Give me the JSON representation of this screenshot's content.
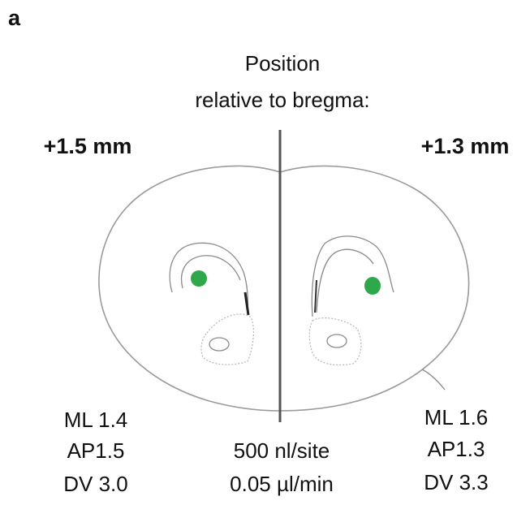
{
  "panel_label": "a",
  "header": [
    "Position",
    "relative to bregma:"
  ],
  "left": {
    "section": "+1.5 mm",
    "coordinates": [
      "ML 1.4",
      "AP1.5",
      "DV 3.0"
    ]
  },
  "right": {
    "section": "+1.3 mm",
    "coordinates": [
      "ML 1.6",
      "AP1.3",
      "DV 3.3"
    ]
  },
  "injection": [
    "500 nl/site",
    "0.05 µl/min"
  ]
}
